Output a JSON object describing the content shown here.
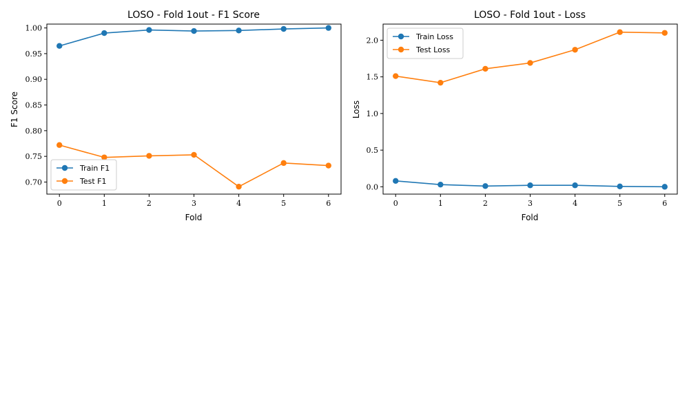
{
  "chart_data": [
    {
      "type": "line",
      "title": "LOSO - Fold 1out - F1 Score",
      "xlabel": "Fold",
      "ylabel": "F1 Score",
      "x": [
        0,
        1,
        2,
        3,
        4,
        5,
        6
      ],
      "xticks": [
        "0",
        "1",
        "2",
        "3",
        "4",
        "5",
        "6"
      ],
      "xlim": [
        -0.28,
        6.28
      ],
      "ylim": [
        0.6765,
        1.0075
      ],
      "yticks": [
        "0.70",
        "0.75",
        "0.80",
        "0.85",
        "0.90",
        "0.95",
        "1.00"
      ],
      "ytick_values": [
        0.7,
        0.75,
        0.8,
        0.85,
        0.9,
        0.95,
        1.0
      ],
      "grid": false,
      "legend_position": "lower-left",
      "series": [
        {
          "name": "Train F1",
          "color": "#1f77b4",
          "values": [
            0.965,
            0.99,
            0.996,
            0.994,
            0.995,
            0.998,
            1.0
          ]
        },
        {
          "name": "Test F1",
          "color": "#ff7f0e",
          "values": [
            0.772,
            0.748,
            0.751,
            0.753,
            0.691,
            0.737,
            0.732
          ]
        }
      ]
    },
    {
      "type": "line",
      "title": "LOSO - Fold 1out - Loss",
      "xlabel": "Fold",
      "ylabel": "Loss",
      "x": [
        0,
        1,
        2,
        3,
        4,
        5,
        6
      ],
      "xticks": [
        "0",
        "1",
        "2",
        "3",
        "4",
        "5",
        "6"
      ],
      "xlim": [
        -0.28,
        6.28
      ],
      "ylim": [
        -0.1,
        2.22
      ],
      "yticks": [
        "0.0",
        "0.5",
        "1.0",
        "1.5",
        "2.0"
      ],
      "ytick_values": [
        0.0,
        0.5,
        1.0,
        1.5,
        2.0
      ],
      "grid": false,
      "legend_position": "upper-left",
      "series": [
        {
          "name": "Train Loss",
          "color": "#1f77b4",
          "values": [
            0.08,
            0.03,
            0.01,
            0.02,
            0.02,
            0.005,
            0.0
          ]
        },
        {
          "name": "Test Loss",
          "color": "#ff7f0e",
          "values": [
            1.51,
            1.42,
            1.61,
            1.69,
            1.87,
            2.11,
            2.1
          ]
        }
      ]
    }
  ]
}
